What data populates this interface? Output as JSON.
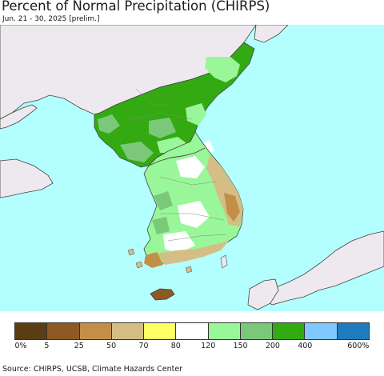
{
  "title": "Percent of Normal Precipitation (CHIRPS)",
  "subtitle": "Jun. 21 - 30, 2025 [prelim.]",
  "source": "Source: CHIRPS, UCSB, Climate Hazards Center",
  "colors": {
    "sea": "#b3ffff",
    "foreign_land": "#eee9ee",
    "border": "#444444"
  },
  "legend": {
    "bins": [
      {
        "color": "#5a3d12"
      },
      {
        "color": "#8c5a22"
      },
      {
        "color": "#c38f48"
      },
      {
        "color": "#d4be86"
      },
      {
        "color": "#ffff66"
      },
      {
        "color": "#ffffff"
      },
      {
        "color": "#99f799"
      },
      {
        "color": "#7bc87b"
      },
      {
        "color": "#33aa11"
      },
      {
        "color": "#80c8ff"
      },
      {
        "color": "#1e7cbe"
      }
    ],
    "labels": [
      "0%",
      "5",
      "25",
      "50",
      "70",
      "80",
      "120",
      "150",
      "200",
      "400",
      "600%"
    ]
  }
}
